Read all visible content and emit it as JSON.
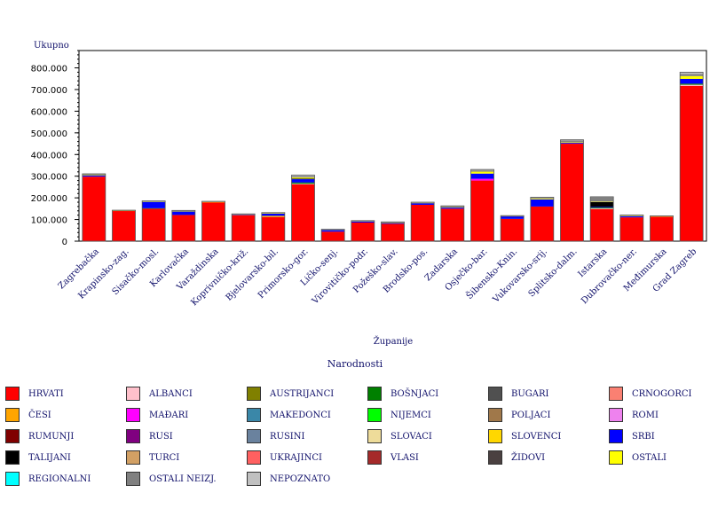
{
  "chart_data": {
    "type": "bar",
    "stacked": true,
    "ylabel": "Ukupno",
    "xlabel": "Županije",
    "ylim": [
      0,
      880000
    ],
    "y_ticks": [
      "0",
      "100.000",
      "200.000",
      "300.000",
      "400.000",
      "500.000",
      "600.000",
      "700.000",
      "800.000"
    ],
    "categories": [
      "Zagrebačka",
      "Krapinsko-zag.",
      "Sisačko-mosl.",
      "Karlovačka",
      "Varaždinska",
      "Koprivničko-križ.",
      "Bjelovarsko-bil.",
      "Primorsko-gor.",
      "Ličko-senj.",
      "Virovitičko-podr.",
      "Požeško-slav.",
      "Brodsko-pos.",
      "Zadarska",
      "Osječko-bar.",
      "Šibensko-Knin.",
      "Vukovarsko-srij.",
      "Splitsko-dalm.",
      "Istarska",
      "Dubrovačko-ner.",
      "Međimurska",
      "Grad Zagreb"
    ],
    "series": [
      {
        "name": "HRVATI",
        "color": "#ff0000",
        "values": [
          298000,
          140000,
          150000,
          121000,
          180000,
          120000,
          111000,
          262000,
          44000,
          86000,
          80000,
          168000,
          150000,
          280000,
          103000,
          160000,
          450000,
          148000,
          110000,
          113000,
          717000
        ]
      },
      {
        "name": "ALBANCI",
        "color": "#ffc0cb",
        "values": [
          0,
          0,
          0,
          0,
          0,
          0,
          0,
          3000,
          0,
          0,
          0,
          0,
          0,
          0,
          0,
          0,
          0,
          3000,
          0,
          0,
          5000
        ]
      },
      {
        "name": "AUSTRIJANCI",
        "color": "#808000",
        "values": [
          0,
          0,
          0,
          0,
          0,
          0,
          0,
          0,
          0,
          0,
          0,
          0,
          0,
          0,
          0,
          0,
          0,
          0,
          0,
          0,
          0
        ]
      },
      {
        "name": "BOŠNJACI",
        "color": "#008000",
        "values": [
          0,
          0,
          2000,
          0,
          0,
          0,
          0,
          6000,
          0,
          0,
          0,
          0,
          0,
          0,
          0,
          0,
          0,
          4000,
          0,
          0,
          5000
        ]
      },
      {
        "name": "BUGARI",
        "color": "#505050",
        "values": [
          0,
          0,
          0,
          0,
          0,
          0,
          0,
          0,
          0,
          0,
          0,
          0,
          0,
          0,
          0,
          0,
          0,
          0,
          0,
          0,
          0
        ]
      },
      {
        "name": "CRNOGORCI",
        "color": "#fa8072",
        "values": [
          0,
          0,
          0,
          0,
          0,
          0,
          0,
          0,
          0,
          0,
          0,
          0,
          0,
          0,
          0,
          0,
          0,
          0,
          0,
          0,
          0
        ]
      },
      {
        "name": "ČESI",
        "color": "#ffa500",
        "values": [
          0,
          0,
          0,
          0,
          0,
          0,
          6000,
          0,
          0,
          0,
          0,
          0,
          0,
          0,
          0,
          0,
          0,
          0,
          0,
          0,
          0
        ]
      },
      {
        "name": "MAĐARI",
        "color": "#ff00ff",
        "values": [
          0,
          0,
          0,
          0,
          0,
          0,
          0,
          0,
          0,
          0,
          0,
          0,
          0,
          8000,
          0,
          0,
          0,
          0,
          0,
          0,
          0
        ]
      },
      {
        "name": "MAKEDONCI",
        "color": "#3a87a8",
        "values": [
          0,
          0,
          0,
          0,
          0,
          0,
          0,
          0,
          0,
          0,
          0,
          0,
          0,
          0,
          0,
          0,
          0,
          0,
          0,
          0,
          0
        ]
      },
      {
        "name": "NIJEMCI",
        "color": "#00ff00",
        "values": [
          0,
          0,
          0,
          0,
          0,
          0,
          0,
          0,
          0,
          0,
          0,
          0,
          0,
          0,
          0,
          0,
          0,
          0,
          0,
          0,
          0
        ]
      },
      {
        "name": "POLJACI",
        "color": "#a0784a",
        "values": [
          0,
          0,
          0,
          0,
          0,
          0,
          0,
          0,
          0,
          0,
          0,
          0,
          0,
          0,
          0,
          0,
          0,
          0,
          0,
          0,
          0
        ]
      },
      {
        "name": "ROMI",
        "color": "#ee82ee",
        "values": [
          0,
          0,
          0,
          0,
          0,
          0,
          0,
          0,
          0,
          0,
          0,
          0,
          0,
          0,
          0,
          0,
          0,
          0,
          0,
          0,
          0
        ]
      },
      {
        "name": "RUMUNJI",
        "color": "#800000",
        "values": [
          0,
          0,
          0,
          0,
          0,
          0,
          0,
          0,
          0,
          0,
          0,
          0,
          0,
          0,
          0,
          0,
          0,
          0,
          0,
          0,
          0
        ]
      },
      {
        "name": "RUSI",
        "color": "#800080",
        "values": [
          0,
          0,
          0,
          0,
          0,
          0,
          0,
          0,
          0,
          0,
          0,
          0,
          0,
          0,
          0,
          0,
          0,
          0,
          0,
          0,
          0
        ]
      },
      {
        "name": "RUSINI",
        "color": "#6a829e",
        "values": [
          0,
          0,
          0,
          0,
          0,
          0,
          0,
          0,
          0,
          0,
          0,
          0,
          0,
          0,
          0,
          0,
          0,
          0,
          0,
          0,
          0
        ]
      },
      {
        "name": "SLOVACI",
        "color": "#eedc9a",
        "values": [
          0,
          0,
          0,
          0,
          0,
          0,
          0,
          0,
          0,
          0,
          0,
          0,
          0,
          0,
          0,
          0,
          0,
          0,
          0,
          0,
          0
        ]
      },
      {
        "name": "SLOVENCI",
        "color": "#ffd700",
        "values": [
          0,
          0,
          0,
          0,
          0,
          0,
          0,
          0,
          0,
          0,
          0,
          0,
          0,
          0,
          0,
          0,
          0,
          0,
          0,
          0,
          0
        ]
      },
      {
        "name": "SRBI",
        "color": "#0000ff",
        "values": [
          6000,
          0,
          30000,
          17000,
          0,
          3000,
          10000,
          15000,
          8000,
          6000,
          5000,
          8000,
          6000,
          24000,
          12000,
          33000,
          4000,
          3000,
          5000,
          0,
          22000
        ]
      },
      {
        "name": "TALIJANI",
        "color": "#000000",
        "values": [
          0,
          0,
          0,
          0,
          0,
          0,
          0,
          3000,
          0,
          0,
          0,
          0,
          0,
          0,
          0,
          0,
          0,
          23000,
          0,
          0,
          0
        ]
      },
      {
        "name": "TURCI",
        "color": "#d2a064",
        "values": [
          0,
          0,
          0,
          0,
          0,
          0,
          0,
          0,
          0,
          0,
          0,
          0,
          0,
          0,
          0,
          0,
          0,
          0,
          0,
          0,
          0
        ]
      },
      {
        "name": "UKRAJINCI",
        "color": "#ff6060",
        "values": [
          0,
          0,
          0,
          0,
          0,
          0,
          0,
          0,
          0,
          0,
          0,
          0,
          0,
          0,
          0,
          0,
          0,
          0,
          0,
          0,
          0
        ]
      },
      {
        "name": "VLASI",
        "color": "#a52a2a",
        "values": [
          0,
          0,
          0,
          0,
          0,
          0,
          0,
          0,
          0,
          0,
          0,
          0,
          0,
          0,
          0,
          0,
          0,
          0,
          0,
          0,
          0
        ]
      },
      {
        "name": "ŽIDOVI",
        "color": "#4a4040",
        "values": [
          0,
          0,
          0,
          0,
          0,
          0,
          0,
          0,
          0,
          0,
          0,
          0,
          0,
          0,
          0,
          0,
          0,
          0,
          0,
          0,
          0
        ]
      },
      {
        "name": "OSTALI",
        "color": "#ffff00",
        "values": [
          1000,
          1000,
          1000,
          1000,
          1000,
          1000,
          2000,
          5000,
          1000,
          1000,
          1000,
          1000,
          1000,
          9000,
          1000,
          4000,
          3000,
          2000,
          2000,
          2000,
          13000
        ]
      },
      {
        "name": "REGIONALNI",
        "color": "#00ffff",
        "values": [
          0,
          0,
          0,
          0,
          0,
          0,
          0,
          0,
          0,
          0,
          0,
          0,
          0,
          0,
          0,
          0,
          0,
          0,
          0,
          0,
          0
        ]
      },
      {
        "name": "OSTALI NEIZJ.",
        "color": "#808080",
        "values": [
          5000,
          1000,
          2000,
          2000,
          2000,
          1000,
          2000,
          6000,
          1000,
          1000,
          2000,
          2000,
          5000,
          6000,
          1000,
          4000,
          8000,
          20000,
          2000,
          1000,
          10000
        ]
      },
      {
        "name": "NEPOZNATO",
        "color": "#c0c0c0",
        "values": [
          1000,
          1000,
          1000,
          1000,
          1000,
          1000,
          1000,
          5000,
          1000,
          1000,
          1000,
          1000,
          1000,
          4000,
          1000,
          2000,
          3000,
          2000,
          2000,
          1000,
          8000
        ]
      }
    ],
    "legend_title": "Narodnosti",
    "legend_position": "bottom",
    "grid": false
  }
}
